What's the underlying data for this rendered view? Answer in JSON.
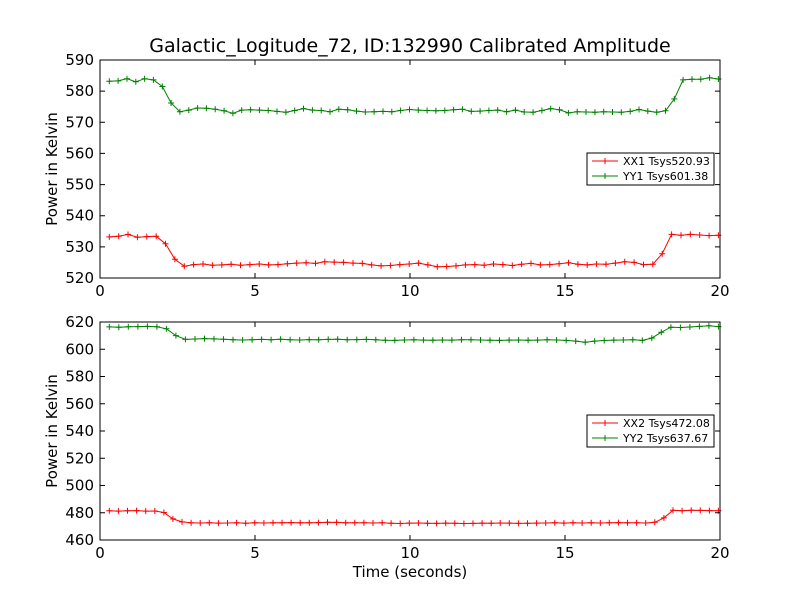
{
  "title": "Galactic_Logitude_72, ID:132990 Calibrated Amplitude",
  "colors": {
    "xx": "#ff0000",
    "yy": "#008000"
  },
  "chart_data": [
    {
      "type": "line",
      "xlabel": "",
      "ylabel": "Power in Kelvin",
      "xlim": [
        0,
        20
      ],
      "ylim": [
        520,
        590
      ],
      "xticks": [
        0,
        5,
        10,
        15,
        20
      ],
      "yticks": [
        520,
        530,
        540,
        550,
        560,
        570,
        580,
        590
      ],
      "legend": "right",
      "series": [
        {
          "name": "XX1 Tsys520.93",
          "color": "#ff0000",
          "values": [
            533.2,
            533.4,
            534.0,
            533.1,
            533.3,
            533.4,
            531.0,
            526.0,
            523.8,
            524.3,
            524.5,
            524.1,
            524.2,
            524.4,
            524.1,
            524.3,
            524.5,
            524.2,
            524.3,
            524.6,
            524.8,
            524.9,
            524.7,
            525.2,
            525.1,
            525.0,
            524.8,
            524.7,
            524.2,
            523.9,
            524.0,
            524.3,
            524.5,
            524.8,
            524.2,
            523.6,
            523.7,
            523.9,
            524.2,
            524.3,
            524.1,
            524.5,
            524.3,
            524.0,
            524.4,
            524.7,
            524.2,
            524.3,
            524.6,
            524.9,
            524.4,
            524.2,
            524.5,
            524.4,
            524.8,
            525.2,
            525.0,
            524.3,
            524.4,
            527.8,
            534.0,
            533.7,
            534.0,
            533.8,
            533.6,
            533.7
          ]
        },
        {
          "name": "YY1 Tsys601.38",
          "color": "#008000",
          "values": [
            583.2,
            583.3,
            584.0,
            583.0,
            584.0,
            583.6,
            581.5,
            576.2,
            573.4,
            573.9,
            574.6,
            574.5,
            574.2,
            573.7,
            572.9,
            573.9,
            574.0,
            573.9,
            573.8,
            573.5,
            573.2,
            573.8,
            574.4,
            573.9,
            573.8,
            573.4,
            574.2,
            574.0,
            573.6,
            573.3,
            573.4,
            573.5,
            573.4,
            573.8,
            574.1,
            573.9,
            573.8,
            573.7,
            573.8,
            574.0,
            574.2,
            573.5,
            573.6,
            573.8,
            573.9,
            573.4,
            573.9,
            573.3,
            573.2,
            573.8,
            574.4,
            574.0,
            573.0,
            573.4,
            573.3,
            573.2,
            573.4,
            573.3,
            573.2,
            573.5,
            574.1,
            573.6,
            573.2,
            573.7,
            577.5,
            583.6,
            583.8,
            583.8,
            584.3,
            583.9
          ]
        }
      ]
    },
    {
      "type": "line",
      "xlabel": "Time (seconds)",
      "ylabel": "Power in Kelvin",
      "xlim": [
        0,
        20
      ],
      "ylim": [
        460,
        620
      ],
      "xticks": [
        0,
        5,
        10,
        15,
        20
      ],
      "yticks": [
        460,
        480,
        500,
        520,
        540,
        560,
        580,
        600,
        620
      ],
      "legend": "right",
      "series": [
        {
          "name": "XX2 Tsys472.08",
          "color": "#ff0000",
          "values": [
            481.5,
            481.2,
            481.4,
            481.6,
            481.2,
            481.3,
            480.2,
            475.5,
            473.3,
            472.6,
            472.5,
            472.7,
            472.4,
            472.5,
            472.6,
            472.3,
            472.6,
            472.5,
            472.7,
            472.6,
            472.8,
            472.6,
            472.7,
            472.8,
            473.0,
            472.9,
            472.6,
            472.7,
            472.6,
            472.5,
            472.6,
            472.3,
            472.1,
            472.4,
            472.5,
            472.3,
            472.2,
            472.4,
            472.3,
            472.1,
            472.2,
            472.4,
            472.3,
            472.5,
            472.4,
            472.2,
            472.3,
            472.4,
            472.5,
            472.6,
            472.4,
            472.6,
            472.5,
            472.6,
            472.5,
            472.7,
            472.8,
            472.6,
            472.7,
            472.5,
            473.0,
            476.2,
            481.9,
            481.5,
            481.8,
            481.7,
            481.6,
            481.4
          ]
        },
        {
          "name": "YY2 Tsys637.67",
          "color": "#008000",
          "values": [
            616.4,
            616.2,
            616.5,
            616.6,
            616.8,
            616.5,
            615.0,
            610.0,
            607.2,
            607.5,
            607.8,
            607.6,
            607.4,
            607.0,
            606.8,
            607.0,
            607.2,
            606.9,
            607.3,
            607.0,
            606.8,
            607.1,
            607.0,
            607.2,
            607.3,
            607.0,
            607.1,
            607.2,
            606.9,
            606.6,
            606.5,
            606.8,
            607.0,
            606.7,
            606.6,
            606.8,
            606.7,
            606.9,
            607.0,
            606.8,
            606.6,
            606.5,
            606.7,
            606.8,
            606.6,
            606.7,
            606.9,
            606.8,
            606.5,
            606.0,
            605.2,
            606.0,
            606.4,
            606.7,
            606.8,
            607.0,
            606.5,
            608.2,
            612.5,
            616.2,
            616.0,
            616.3,
            616.8,
            617.2,
            616.6
          ]
        }
      ]
    }
  ]
}
